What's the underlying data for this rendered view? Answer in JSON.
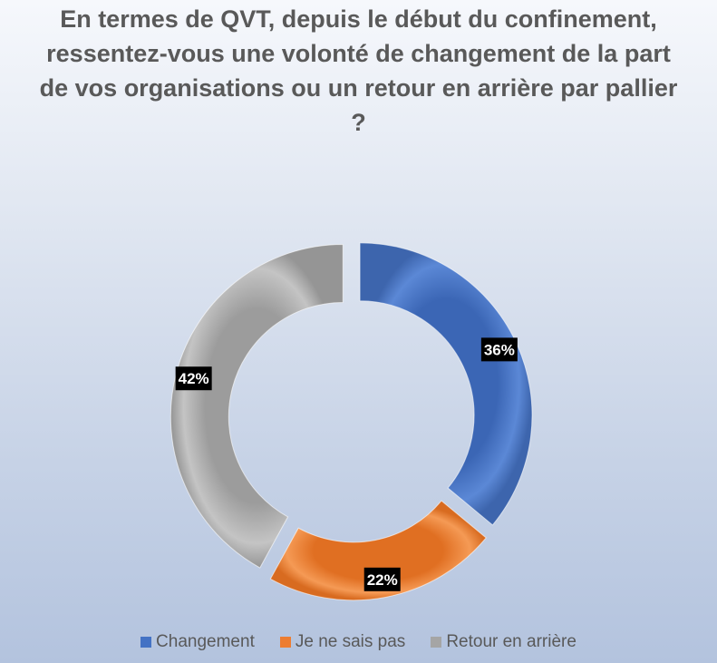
{
  "chart_data": {
    "type": "pie",
    "donut": true,
    "title": "En termes de QVT, depuis le début du confinement, ressentez-vous une volonté de changement de la part de vos organisations ou un retour en arrière par pallier ?",
    "categories": [
      "Changement",
      "Je ne sais pas",
      "Retour en arrière"
    ],
    "values": [
      36,
      22,
      42
    ],
    "labels": [
      "36%",
      "22%",
      "42%"
    ],
    "unit": "%",
    "colors": [
      "#4472c4",
      "#ed7d31",
      "#a5a5a5"
    ],
    "legend_position": "bottom",
    "exploded": true
  }
}
